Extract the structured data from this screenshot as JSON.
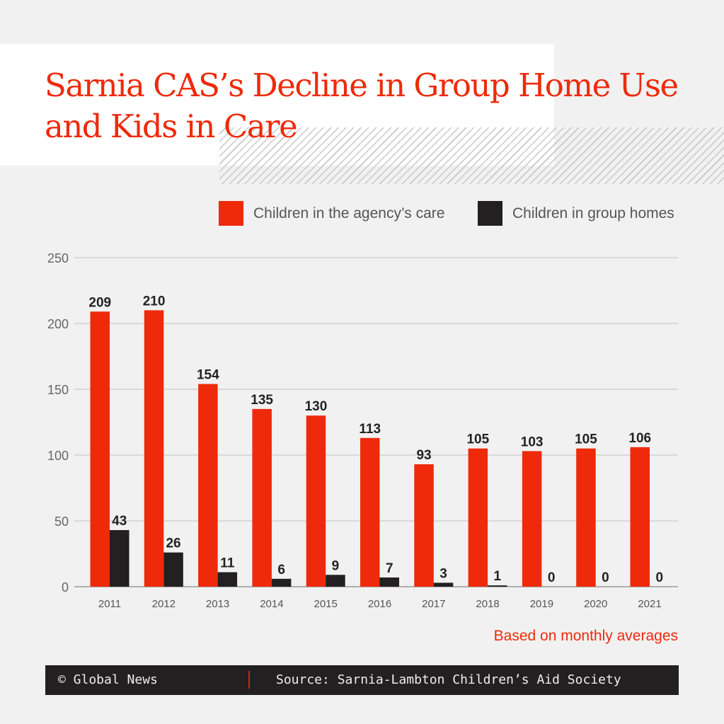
{
  "title": "Sarnia CAS’s Decline in Group Home Use and Kids in Care",
  "note": "Based on monthly averages",
  "footer": {
    "copyright": "© Global News",
    "source": "Source: Sarnia-Lambton Children’s Aid Society"
  },
  "colors": {
    "accent": "#ee2a0b",
    "dark": "#222021"
  },
  "chart_data": {
    "type": "bar",
    "title": "Sarnia CAS’s Decline in Group Home Use and Kids in Care",
    "categories": [
      "2011",
      "2012",
      "2013",
      "2014",
      "2015",
      "2016",
      "2017",
      "2018",
      "2019",
      "2020",
      "2021"
    ],
    "series": [
      {
        "name": "Children in the agency’s care",
        "color": "#ee2a0b",
        "values": [
          209,
          210,
          154,
          135,
          130,
          113,
          93,
          105,
          103,
          105,
          106
        ]
      },
      {
        "name": "Children in group homes",
        "color": "#222021",
        "values": [
          43,
          26,
          11,
          6,
          9,
          7,
          3,
          1,
          0,
          0,
          0
        ]
      }
    ],
    "yticks": [
      "0",
      "50",
      "100",
      "150",
      "200",
      "250"
    ],
    "ylim": [
      0,
      250
    ],
    "grid": true,
    "legend": "top-right",
    "xlabel": "",
    "ylabel": ""
  }
}
